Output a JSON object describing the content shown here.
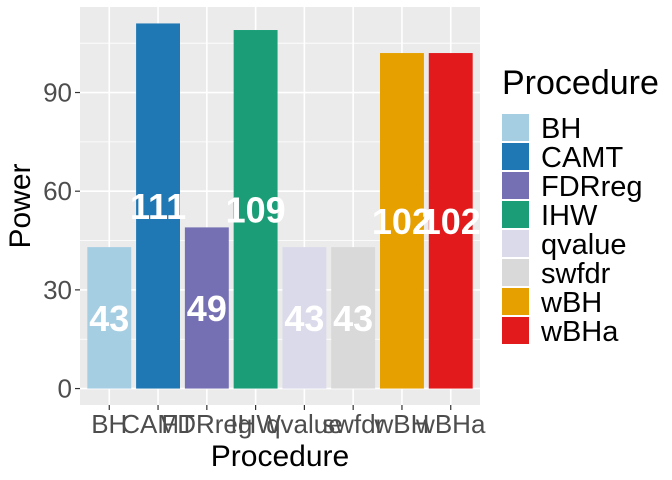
{
  "chart_data": {
    "type": "bar",
    "xlabel": "Procedure",
    "ylabel": "Power",
    "categories": [
      "BH",
      "CAMT",
      "FDRreg",
      "IHW",
      "qvalue",
      "swfdr",
      "wBH",
      "wBHa"
    ],
    "values": [
      43,
      111,
      49,
      109,
      43,
      43,
      102,
      102
    ],
    "colors": [
      "#a6cee3",
      "#1f78b4",
      "#7570b3",
      "#1b9e77",
      "#dadaeb",
      "#d9d9d9",
      "#e6a000",
      "#e31a1c"
    ],
    "yticks": [
      0,
      30,
      60,
      90
    ],
    "ylim": [
      -5,
      116
    ],
    "grid": true,
    "legend": {
      "title": "Procedure",
      "placement": "right",
      "entries": [
        "BH",
        "CAMT",
        "FDRreg",
        "IHW",
        "qvalue",
        "swfdr",
        "wBH",
        "wBHa"
      ]
    },
    "panel_background": "#ebebeb"
  }
}
